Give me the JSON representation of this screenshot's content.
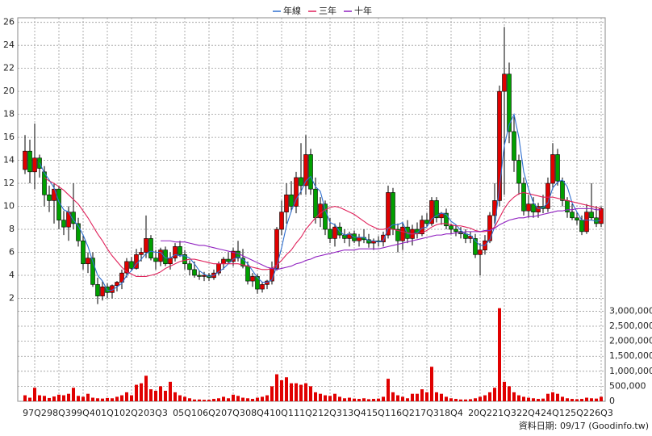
{
  "chart_data": {
    "type": "candlestick",
    "categories": [
      null,
      null,
      "97Q2",
      null,
      null,
      null,
      null,
      "98Q3",
      null,
      null,
      null,
      null,
      "99Q4",
      null,
      null,
      null,
      null,
      "01Q1",
      null,
      null,
      null,
      null,
      "02Q2",
      null,
      null,
      null,
      null,
      "03Q3",
      null,
      null,
      null,
      null,
      null,
      "05Q1",
      null,
      null,
      null,
      null,
      "06Q2",
      null,
      null,
      null,
      null,
      "07Q3",
      null,
      null,
      null,
      null,
      "08Q4",
      null,
      null,
      null,
      null,
      "10Q1",
      null,
      null,
      null,
      null,
      "11Q2",
      null,
      null,
      null,
      null,
      "12Q3",
      null,
      null,
      null,
      null,
      "13Q4",
      null,
      null,
      null,
      null,
      "15Q1",
      null,
      null,
      null,
      null,
      "16Q2",
      null,
      null,
      null,
      null,
      "17Q3",
      null,
      null,
      null,
      null,
      "18Q4",
      null,
      null,
      null,
      null,
      null,
      "20Q2",
      null,
      null,
      null,
      null,
      "21Q3",
      null,
      null,
      null,
      null,
      "22Q4",
      null,
      null,
      null,
      null,
      "24Q1",
      null,
      null,
      null,
      null,
      "25Q2",
      null,
      null,
      null,
      null,
      "26Q3"
    ],
    "open": [
      13.2,
      14.8,
      13,
      14.2,
      13,
      11,
      10.5,
      11.5,
      8.8,
      8.2,
      9.5,
      8.5,
      7,
      5,
      5.5,
      3.2,
      2.2,
      3,
      2.5,
      3.1,
      3.4,
      4.2,
      5.2,
      4.6,
      5.8,
      6,
      7.2,
      5.5,
      5.2,
      6.2,
      5,
      5.5,
      6.5,
      5.8,
      5,
      4.5,
      4,
      3.9,
      4,
      3.8,
      4.2,
      5,
      5.4,
      5.2,
      6.1,
      5.5,
      4.8,
      3.5,
      3.9,
      2.8,
      3.2,
      3.5,
      4.6,
      8,
      9.5,
      11,
      10,
      12.5,
      11.8,
      14.5,
      11.5,
      9,
      10.2,
      8,
      7.2,
      8.2,
      7.5,
      7.2,
      7.6,
      7,
      7.3,
      7.1,
      6.8,
      7,
      6.9,
      7.5,
      11.2,
      8,
      7,
      8.2,
      7.2,
      8,
      7.6,
      8.8,
      8.5,
      10.5,
      9,
      9.4,
      8.3,
      8,
      7.8,
      7.6,
      7.2,
      7.2,
      5.8,
      6.2,
      7,
      9.2,
      10.5,
      20,
      21.5,
      16.5,
      14,
      12,
      9.6,
      10.2,
      9.5,
      10,
      9.8,
      12,
      14.5,
      12.2,
      10.5,
      9.5,
      9,
      8.8,
      7.8,
      9.5,
      9,
      8.5
    ],
    "high": [
      16.2,
      15.8,
      17.2,
      14.5,
      13.5,
      11.8,
      12,
      11.8,
      9.6,
      10,
      12,
      9,
      7.5,
      6,
      6,
      3.8,
      3.5,
      3.3,
      3.2,
      3.5,
      4.5,
      5.5,
      5.6,
      6.3,
      6.4,
      9.2,
      7.5,
      6.2,
      6.4,
      6.5,
      6,
      6.8,
      7,
      6.2,
      5.3,
      5.2,
      4.4,
      4.3,
      4.2,
      4.5,
      5.2,
      5.6,
      6,
      6.4,
      7,
      6.3,
      5.2,
      4.2,
      4.1,
      3.4,
      3.6,
      5.2,
      8.2,
      10.5,
      12,
      12.2,
      13,
      15.5,
      16.2,
      15,
      12.5,
      10.8,
      10.5,
      9,
      8.5,
      8.6,
      8,
      7.8,
      7.9,
      7.6,
      8,
      7.6,
      7.2,
      7.4,
      7.8,
      11.8,
      11.6,
      8.5,
      8.6,
      8.8,
      8.4,
      8.6,
      9.2,
      9.4,
      10.8,
      10.8,
      9.5,
      9.8,
      8.5,
      8.4,
      8.2,
      8,
      7.8,
      7.6,
      6.8,
      7.5,
      9.5,
      12,
      20.5,
      25.6,
      22.5,
      17.8,
      14.5,
      12.5,
      11,
      10.8,
      10.3,
      11,
      12.5,
      15.5,
      15,
      12.5,
      10.8,
      10.2,
      9.5,
      9.2,
      10.2,
      12,
      10,
      10
    ],
    "low": [
      12.8,
      12,
      11.5,
      12.5,
      10,
      9.5,
      8.5,
      8,
      7.5,
      7,
      8,
      6.5,
      4.5,
      4.2,
      3,
      1.5,
      1.8,
      2,
      2,
      2.6,
      2.8,
      3.8,
      4.4,
      4.5,
      5.2,
      5.5,
      5.3,
      4.5,
      4.8,
      4.8,
      4.5,
      5.2,
      5.6,
      4.5,
      4,
      3.8,
      3.6,
      3.5,
      3.5,
      3.6,
      4,
      4.5,
      5,
      4.8,
      5.2,
      4.6,
      3.2,
      3,
      2.4,
      2.5,
      2.8,
      3.2,
      4.4,
      7.5,
      8.5,
      9.5,
      9.4,
      11,
      11,
      11,
      8.5,
      8.2,
      7.5,
      6.8,
      6.5,
      7.2,
      6.8,
      6.5,
      6.8,
      6.5,
      6.8,
      6.4,
      6.2,
      6.5,
      6.5,
      7.2,
      7.5,
      6,
      6.2,
      6.8,
      6.6,
      7.2,
      7.4,
      8.2,
      8.3,
      8.6,
      8.4,
      8,
      7.6,
      7.4,
      7.2,
      6.8,
      6.8,
      5.5,
      4,
      5.8,
      6.8,
      8.5,
      10,
      11,
      15.5,
      13,
      11,
      9.2,
      9,
      9,
      9,
      9.4,
      9.5,
      11.5,
      11.8,
      10,
      9,
      8.8,
      8.4,
      7.5,
      7.6,
      8.8,
      8.2,
      8.2
    ],
    "close": [
      14.8,
      13,
      14.2,
      13.3,
      11,
      10.5,
      11.5,
      8.8,
      8.2,
      9.5,
      8.5,
      7,
      5,
      5.5,
      3.2,
      2.2,
      3,
      2.5,
      3.1,
      3.4,
      4.2,
      5.2,
      4.6,
      5.8,
      6,
      7.2,
      5.5,
      5.2,
      6.2,
      5,
      5.5,
      6.5,
      5.8,
      5,
      4.5,
      4,
      3.9,
      4,
      3.8,
      4.2,
      5,
      5.4,
      5.2,
      6.1,
      5.5,
      4.8,
      3.5,
      3.9,
      2.8,
      3.2,
      3.5,
      4.6,
      8,
      9.5,
      11,
      10,
      12.5,
      11.8,
      14.5,
      11.5,
      9,
      10.2,
      8,
      7.2,
      8.2,
      7.5,
      7.2,
      7.6,
      7,
      7.3,
      7.1,
      6.8,
      7,
      6.9,
      7.5,
      11.2,
      8,
      7,
      8.2,
      7.2,
      8,
      7.6,
      8.8,
      8.5,
      10.5,
      9,
      9.4,
      8.3,
      8,
      7.8,
      7.6,
      7.2,
      7.4,
      5.8,
      6.2,
      7,
      9.2,
      10.5,
      20,
      21.5,
      16.5,
      14,
      12,
      9.6,
      10.2,
      9.5,
      10,
      9.8,
      12,
      14.5,
      12.2,
      10.5,
      9.5,
      9,
      8.8,
      7.8,
      9.5,
      9,
      8.5,
      9.8
    ],
    "up_color": "#e00000",
    "down_color": "#00a000",
    "ylim": [
      1.4,
      26.4
    ],
    "yticks": [
      2,
      4,
      6,
      8,
      10,
      12,
      14,
      16,
      18,
      20,
      22,
      24,
      26
    ],
    "grid": true,
    "legend": "top",
    "lines": [
      {
        "name": "年線",
        "color": "#2f6fd0",
        "values": [
          null,
          null,
          null,
          13.8,
          12.9,
          12.3,
          11.6,
          10.4,
          9.7,
          9.5,
          8.8,
          8.3,
          7.5,
          6.5,
          5.2,
          4.0,
          3.5,
          2.7,
          2.7,
          3.0,
          3.3,
          4.0,
          4.4,
          5.0,
          5.4,
          5.9,
          6.1,
          6.0,
          6.0,
          5.5,
          5.5,
          5.8,
          5.7,
          5.7,
          5.5,
          5.0,
          4.4,
          4.1,
          3.9,
          4.0,
          4.3,
          4.6,
          5.0,
          5.4,
          5.6,
          5.4,
          5.0,
          4.4,
          3.8,
          3.4,
          3.4,
          3.6,
          4.8,
          6.4,
          8.3,
          9.6,
          10.6,
          11.3,
          12.2,
          12.6,
          11.7,
          11.3,
          9.7,
          8.6,
          8.4,
          7.8,
          7.5,
          7.6,
          7.3,
          7.3,
          7.3,
          7.0,
          7.0,
          6.9,
          7.0,
          8.1,
          8.4,
          8.4,
          8.6,
          7.6,
          7.6,
          7.7,
          8.1,
          8.2,
          8.9,
          9.2,
          9.4,
          9.3,
          8.7,
          8.4,
          7.9,
          7.6,
          7.5,
          7.0,
          6.6,
          6.6,
          7.1,
          8.2,
          11.7,
          15.3,
          17.1,
          18.0,
          16.0,
          13.0,
          11.5,
          10.3,
          9.8,
          9.9,
          10.3,
          11.6,
          12.1,
          12.3,
          11.7,
          10.3,
          9.5,
          8.8,
          8.8,
          8.8,
          8.7,
          8.8
        ]
      },
      {
        "name": "三年",
        "color": "#e0205a",
        "values": [
          null,
          null,
          null,
          null,
          12.5,
          12.2,
          12,
          11.7,
          11.4,
          11.0,
          10.6,
          10.2,
          9.6,
          9.0,
          8.3,
          7.6,
          7.0,
          6.3,
          5.7,
          5.2,
          4.7,
          4.3,
          4.1,
          3.9,
          3.9,
          3.9,
          4.0,
          4.1,
          4.3,
          4.6,
          4.8,
          5.0,
          5.2,
          5.3,
          5.4,
          5.4,
          5.3,
          5.2,
          5.1,
          5.0,
          5.0,
          5.0,
          5.0,
          5.0,
          5.0,
          4.9,
          4.8,
          4.7,
          4.6,
          4.5,
          4.5,
          4.6,
          4.9,
          5.3,
          5.8,
          6.2,
          6.8,
          7.3,
          8.0,
          8.5,
          9.0,
          9.4,
          9.7,
          9.9,
          10.0,
          9.9,
          9.7,
          9.5,
          9.3,
          9.0,
          8.7,
          8.4,
          8.2,
          8.0,
          8.0,
          8.1,
          8.0,
          7.9,
          7.8,
          7.7,
          7.6,
          7.6,
          7.7,
          7.9,
          8.2,
          8.4,
          8.5,
          8.5,
          8.4,
          8.3,
          8.3,
          8.2,
          8.1,
          7.9,
          7.8,
          7.8,
          7.9,
          8.2,
          9.0,
          9.8,
          10.4,
          10.8,
          11.1,
          11.2,
          11.1,
          11.0,
          10.9,
          10.8,
          10.8,
          10.8,
          10.7,
          10.6,
          10.5,
          10.4,
          10.3,
          10.2,
          10.1,
          10.0,
          9.9,
          9.8
        ]
      },
      {
        "name": "十年",
        "color": "#9020c0",
        "values": [
          null,
          null,
          null,
          null,
          null,
          null,
          null,
          null,
          null,
          null,
          null,
          null,
          null,
          null,
          null,
          null,
          null,
          null,
          null,
          null,
          null,
          null,
          null,
          null,
          null,
          null,
          null,
          null,
          7.0,
          7.0,
          7.0,
          6.9,
          6.9,
          6.9,
          6.8,
          6.7,
          6.6,
          6.6,
          6.5,
          6.4,
          6.3,
          6.2,
          6.1,
          6.0,
          5.9,
          5.7,
          5.5,
          5.3,
          5.1,
          4.9,
          4.7,
          4.6,
          4.5,
          4.6,
          4.7,
          4.8,
          5.0,
          5.1,
          5.3,
          5.4,
          5.6,
          5.7,
          5.8,
          5.9,
          6.0,
          6.1,
          6.2,
          6.2,
          6.2,
          6.3,
          6.3,
          6.3,
          6.3,
          6.3,
          6.4,
          6.5,
          6.6,
          6.7,
          6.8,
          6.9,
          7.0,
          7.1,
          7.2,
          7.3,
          7.4,
          7.5,
          7.5,
          7.6,
          7.6,
          7.7,
          7.7,
          7.8,
          7.8,
          7.8,
          7.8,
          7.9,
          7.9,
          8.1,
          8.4,
          8.6,
          8.8,
          8.9,
          9.0,
          9.0,
          9.1,
          9.1,
          9.2,
          9.3,
          9.4,
          9.5,
          9.6,
          9.6,
          9.7,
          9.7,
          9.8,
          9.8,
          9.8,
          9.8,
          9.7,
          9.7
        ]
      }
    ],
    "volume": {
      "color": "#e00000",
      "values": [
        200000,
        120000,
        450000,
        200000,
        180000,
        110000,
        160000,
        220000,
        200000,
        250000,
        450000,
        180000,
        150000,
        250000,
        120000,
        100000,
        90000,
        110000,
        100000,
        150000,
        200000,
        300000,
        200000,
        550000,
        600000,
        850000,
        400000,
        350000,
        500000,
        350000,
        650000,
        300000,
        200000,
        150000,
        100000,
        60000,
        60000,
        50000,
        50000,
        80000,
        100000,
        150000,
        100000,
        220000,
        180000,
        120000,
        100000,
        80000,
        120000,
        150000,
        200000,
        500000,
        900000,
        700000,
        800000,
        600000,
        600000,
        550000,
        600000,
        500000,
        300000,
        250000,
        200000,
        180000,
        250000,
        150000,
        100000,
        120000,
        90000,
        80000,
        100000,
        70000,
        80000,
        90000,
        150000,
        750000,
        300000,
        200000,
        150000,
        100000,
        250000,
        250000,
        400000,
        300000,
        1150000,
        300000,
        250000,
        150000,
        100000,
        80000,
        60000,
        60000,
        70000,
        100000,
        150000,
        200000,
        300000,
        450000,
        3100000,
        650000,
        500000,
        300000,
        200000,
        150000,
        120000,
        100000,
        80000,
        90000,
        250000,
        300000,
        250000,
        150000,
        100000,
        80000,
        70000,
        80000,
        120000,
        100000,
        90000,
        150000
      ],
      "ylim": [
        0,
        3200000
      ],
      "yticks": [
        {
          "value": 0,
          "label": "0"
        },
        {
          "value": 500000,
          "label": "500,000"
        },
        {
          "value": 1000000,
          "label": "1,000,000"
        },
        {
          "value": 1500000,
          "label": "1,500,000"
        },
        {
          "value": 2000000,
          "label": "2,000,000"
        },
        {
          "value": 2500000,
          "label": "2,500,000"
        },
        {
          "value": 3000000,
          "label": "3,000,000"
        }
      ]
    },
    "source": "資料日期: 09/17 (Goodinfo.tw)"
  }
}
